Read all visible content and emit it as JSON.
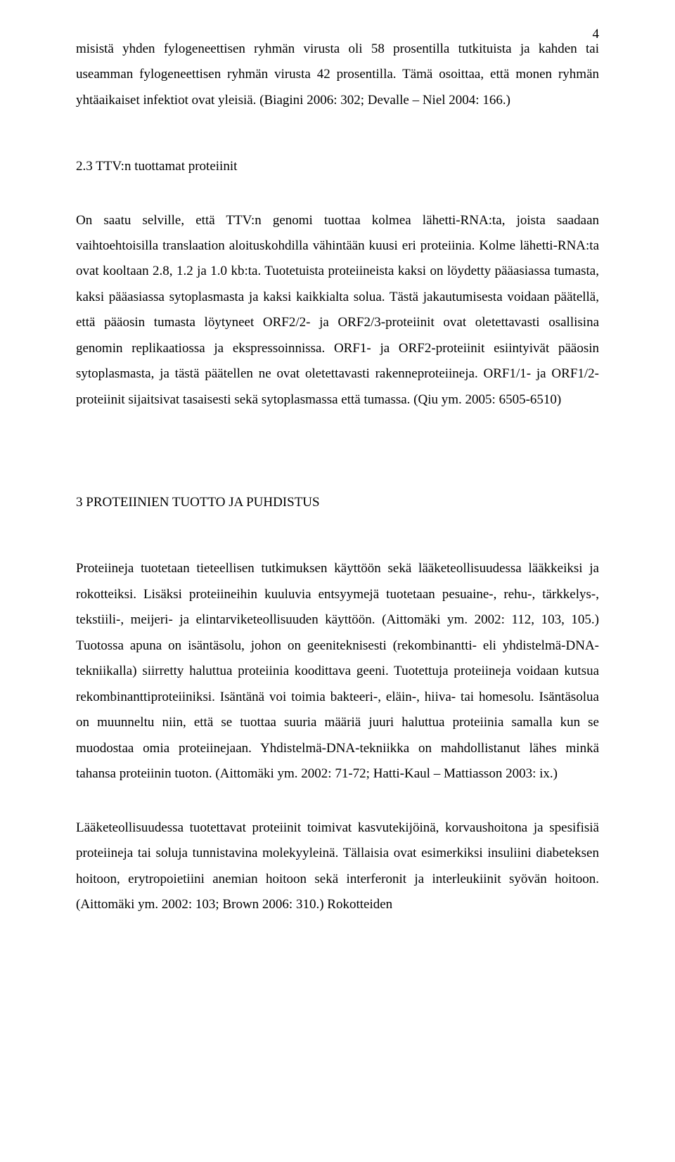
{
  "page_number": "4",
  "paragraphs": {
    "p1": "misistä yhden fylogeneettisen ryhmän virusta oli 58 prosentilla tutkituista ja kahden tai useamman fylogeneettisen ryhmän virusta 42 prosentilla. Tämä osoittaa, että monen ryhmän yhtäaikaiset infektiot ovat yleisiä. (Biagini 2006: 302; Devalle – Niel 2004: 166.)",
    "h_2_3": "2.3 TTV:n tuottamat proteiinit",
    "p2": "On saatu selville, että TTV:n genomi tuottaa kolmea lähetti-RNA:ta, joista saadaan vaihtoehtoisilla translaation aloituskohdilla vähintään kuusi eri proteiinia. Kolme lähetti-RNA:ta ovat kooltaan 2.8, 1.2 ja 1.0 kb:ta. Tuotetuista proteiineista kaksi on löydetty pääasiassa tumasta, kaksi pääasiassa sytoplasmasta ja kaksi kaikkialta solua. Tästä jakautumisesta voidaan päätellä, että pääosin tumasta löytyneet ORF2/2- ja ORF2/3-proteiinit ovat oletettavasti osallisina genomin replikaatiossa ja ekspressoinnissa. ORF1- ja ORF2-proteiinit esiintyivät pääosin sytoplasmasta, ja tästä päätellen ne ovat oletettavasti rakenneproteiineja. ORF1/1- ja ORF1/2-proteiinit sijaitsivat tasaisesti sekä sytoplasmassa että tumassa. (Qiu ym. 2005: 6505-6510)",
    "h_3": "3 PROTEIINIEN TUOTTO JA PUHDISTUS",
    "p3": "Proteiineja tuotetaan tieteellisen tutkimuksen käyttöön sekä lääketeollisuudessa lääkkeiksi ja rokotteiksi. Lisäksi proteiineihin kuuluvia entsyymejä tuotetaan pesuaine-, rehu-, tärkkelys-, tekstiili-, meijeri- ja elintarviketeollisuuden käyttöön. (Aittomäki ym. 2002: 112, 103, 105.) Tuotossa apuna on isäntäsolu, johon on geeniteknisesti (rekombinantti- eli yhdistelmä-DNA-tekniikalla) siirretty haluttua proteiinia koodittava geeni. Tuotettuja proteiineja voidaan kutsua rekombinanttiproteiiniksi. Isäntänä voi toimia bakteeri-, eläin-, hiiva- tai homesolu. Isäntäsolua on muunneltu niin, että se tuottaa suuria määriä juuri haluttua proteiinia samalla kun se muodostaa omia proteiinejaan. Yhdistelmä-DNA-tekniikka on mahdollistanut lähes minkä tahansa proteiinin tuoton. (Aittomäki ym. 2002: 71-72; Hatti-Kaul – Mattiasson 2003: ix.)",
    "p4": "Lääketeollisuudessa tuotettavat proteiinit toimivat kasvutekijöinä, korvaushoitona ja spesifisiä proteiineja tai soluja tunnistavina molekyyleinä. Tällaisia ovat esimerkiksi insuliini diabeteksen hoitoon, erytropoietiini anemian hoitoon sekä interferonit ja interleukiinit syövän hoitoon. (Aittomäki ym. 2002: 103; Brown 2006: 310.) Rokotteiden"
  },
  "colors": {
    "text": "#000000",
    "background": "#ffffff"
  },
  "typography": {
    "font_family": "Times New Roman",
    "body_fontsize_pt": 14,
    "line_height": 1.92,
    "text_align": "justify"
  }
}
